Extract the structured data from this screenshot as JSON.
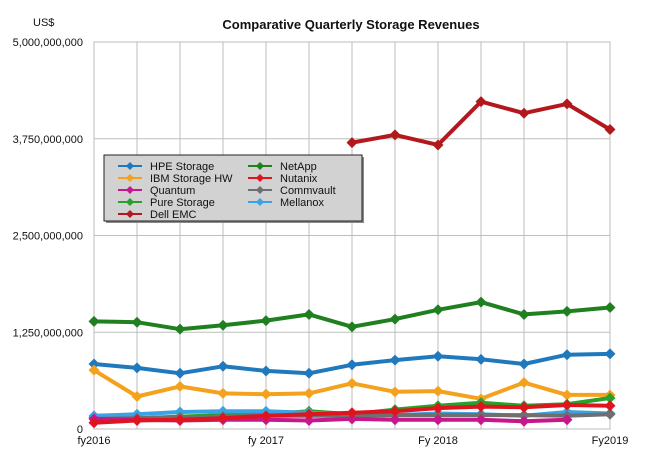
{
  "chart_data": {
    "type": "line",
    "title": "Comparative Quarterly Storage Revenues",
    "ylabel": "US$",
    "xlabel": "",
    "ylim": [
      0,
      5000000000
    ],
    "yticks": [
      0,
      1250000000,
      2500000000,
      3750000000,
      5000000000
    ],
    "ytick_labels": [
      "0",
      "1,250,000,000",
      "2,500,000,000",
      "3,750,000,000",
      "5,000,000,000"
    ],
    "x_tick_labels": [
      {
        "index": 0,
        "label": "fy2016"
      },
      {
        "index": 4,
        "label": "fy 2017"
      },
      {
        "index": 8,
        "label": "Fy 2018"
      },
      {
        "index": 12,
        "label": "Fy2019"
      }
    ],
    "n_quarters": 13,
    "grid": true,
    "legend_position": "upper-left",
    "series": [
      {
        "name": "Dell EMC",
        "color": "#b3191c",
        "values": [
          null,
          null,
          null,
          null,
          null,
          null,
          3700000000,
          3800000000,
          3670000000,
          4230000000,
          4080000000,
          4200000000,
          3870000000
        ]
      },
      {
        "name": "NetApp",
        "color": "#20801f",
        "values": [
          1390000000,
          1380000000,
          1290000000,
          1340000000,
          1400000000,
          1480000000,
          1320000000,
          1420000000,
          1540000000,
          1640000000,
          1480000000,
          1520000000,
          1570000000
        ]
      },
      {
        "name": "HPE Storage",
        "color": "#2179bd",
        "values": [
          840000000,
          790000000,
          720000000,
          810000000,
          750000000,
          720000000,
          830000000,
          890000000,
          940000000,
          900000000,
          840000000,
          960000000,
          970000000
        ]
      },
      {
        "name": "IBM Storage HW",
        "color": "#f4a21e",
        "values": [
          760000000,
          420000000,
          550000000,
          460000000,
          450000000,
          460000000,
          590000000,
          480000000,
          490000000,
          390000000,
          600000000,
          440000000,
          440000000
        ]
      },
      {
        "name": "Pure Storage",
        "color": "#29a02a",
        "values": [
          150000000,
          140000000,
          160000000,
          180000000,
          190000000,
          230000000,
          190000000,
          250000000,
          300000000,
          340000000,
          300000000,
          320000000,
          400000000
        ]
      },
      {
        "name": "Mellanox",
        "color": "#3ba3e3",
        "values": [
          170000000,
          190000000,
          220000000,
          230000000,
          230000000,
          210000000,
          190000000,
          180000000,
          200000000,
          190000000,
          170000000,
          220000000,
          200000000
        ]
      },
      {
        "name": "Commvault",
        "color": "#6f6f6f",
        "values": [
          130000000,
          140000000,
          150000000,
          160000000,
          170000000,
          170000000,
          170000000,
          180000000,
          180000000,
          180000000,
          180000000,
          170000000,
          190000000
        ]
      },
      {
        "name": "Quantum",
        "color": "#c7178c",
        "values": [
          130000000,
          120000000,
          110000000,
          120000000,
          120000000,
          110000000,
          130000000,
          120000000,
          120000000,
          120000000,
          100000000,
          120000000,
          null
        ]
      },
      {
        "name": "Nutanix",
        "color": "#e0141e",
        "values": [
          80000000,
          110000000,
          120000000,
          140000000,
          170000000,
          190000000,
          210000000,
          230000000,
          270000000,
          290000000,
          280000000,
          310000000,
          300000000
        ]
      }
    ],
    "legend": [
      {
        "name": "HPE Storage",
        "color": "#2179bd"
      },
      {
        "name": "NetApp",
        "color": "#20801f"
      },
      {
        "name": "IBM Storage HW",
        "color": "#f4a21e"
      },
      {
        "name": "Nutanix",
        "color": "#e0141e"
      },
      {
        "name": "Quantum",
        "color": "#c7178c"
      },
      {
        "name": "Commvault",
        "color": "#6f6f6f"
      },
      {
        "name": "Pure Storage",
        "color": "#29a02a"
      },
      {
        "name": "Mellanox",
        "color": "#3ba3e3"
      },
      {
        "name": "Dell EMC",
        "color": "#b3191c"
      }
    ]
  }
}
